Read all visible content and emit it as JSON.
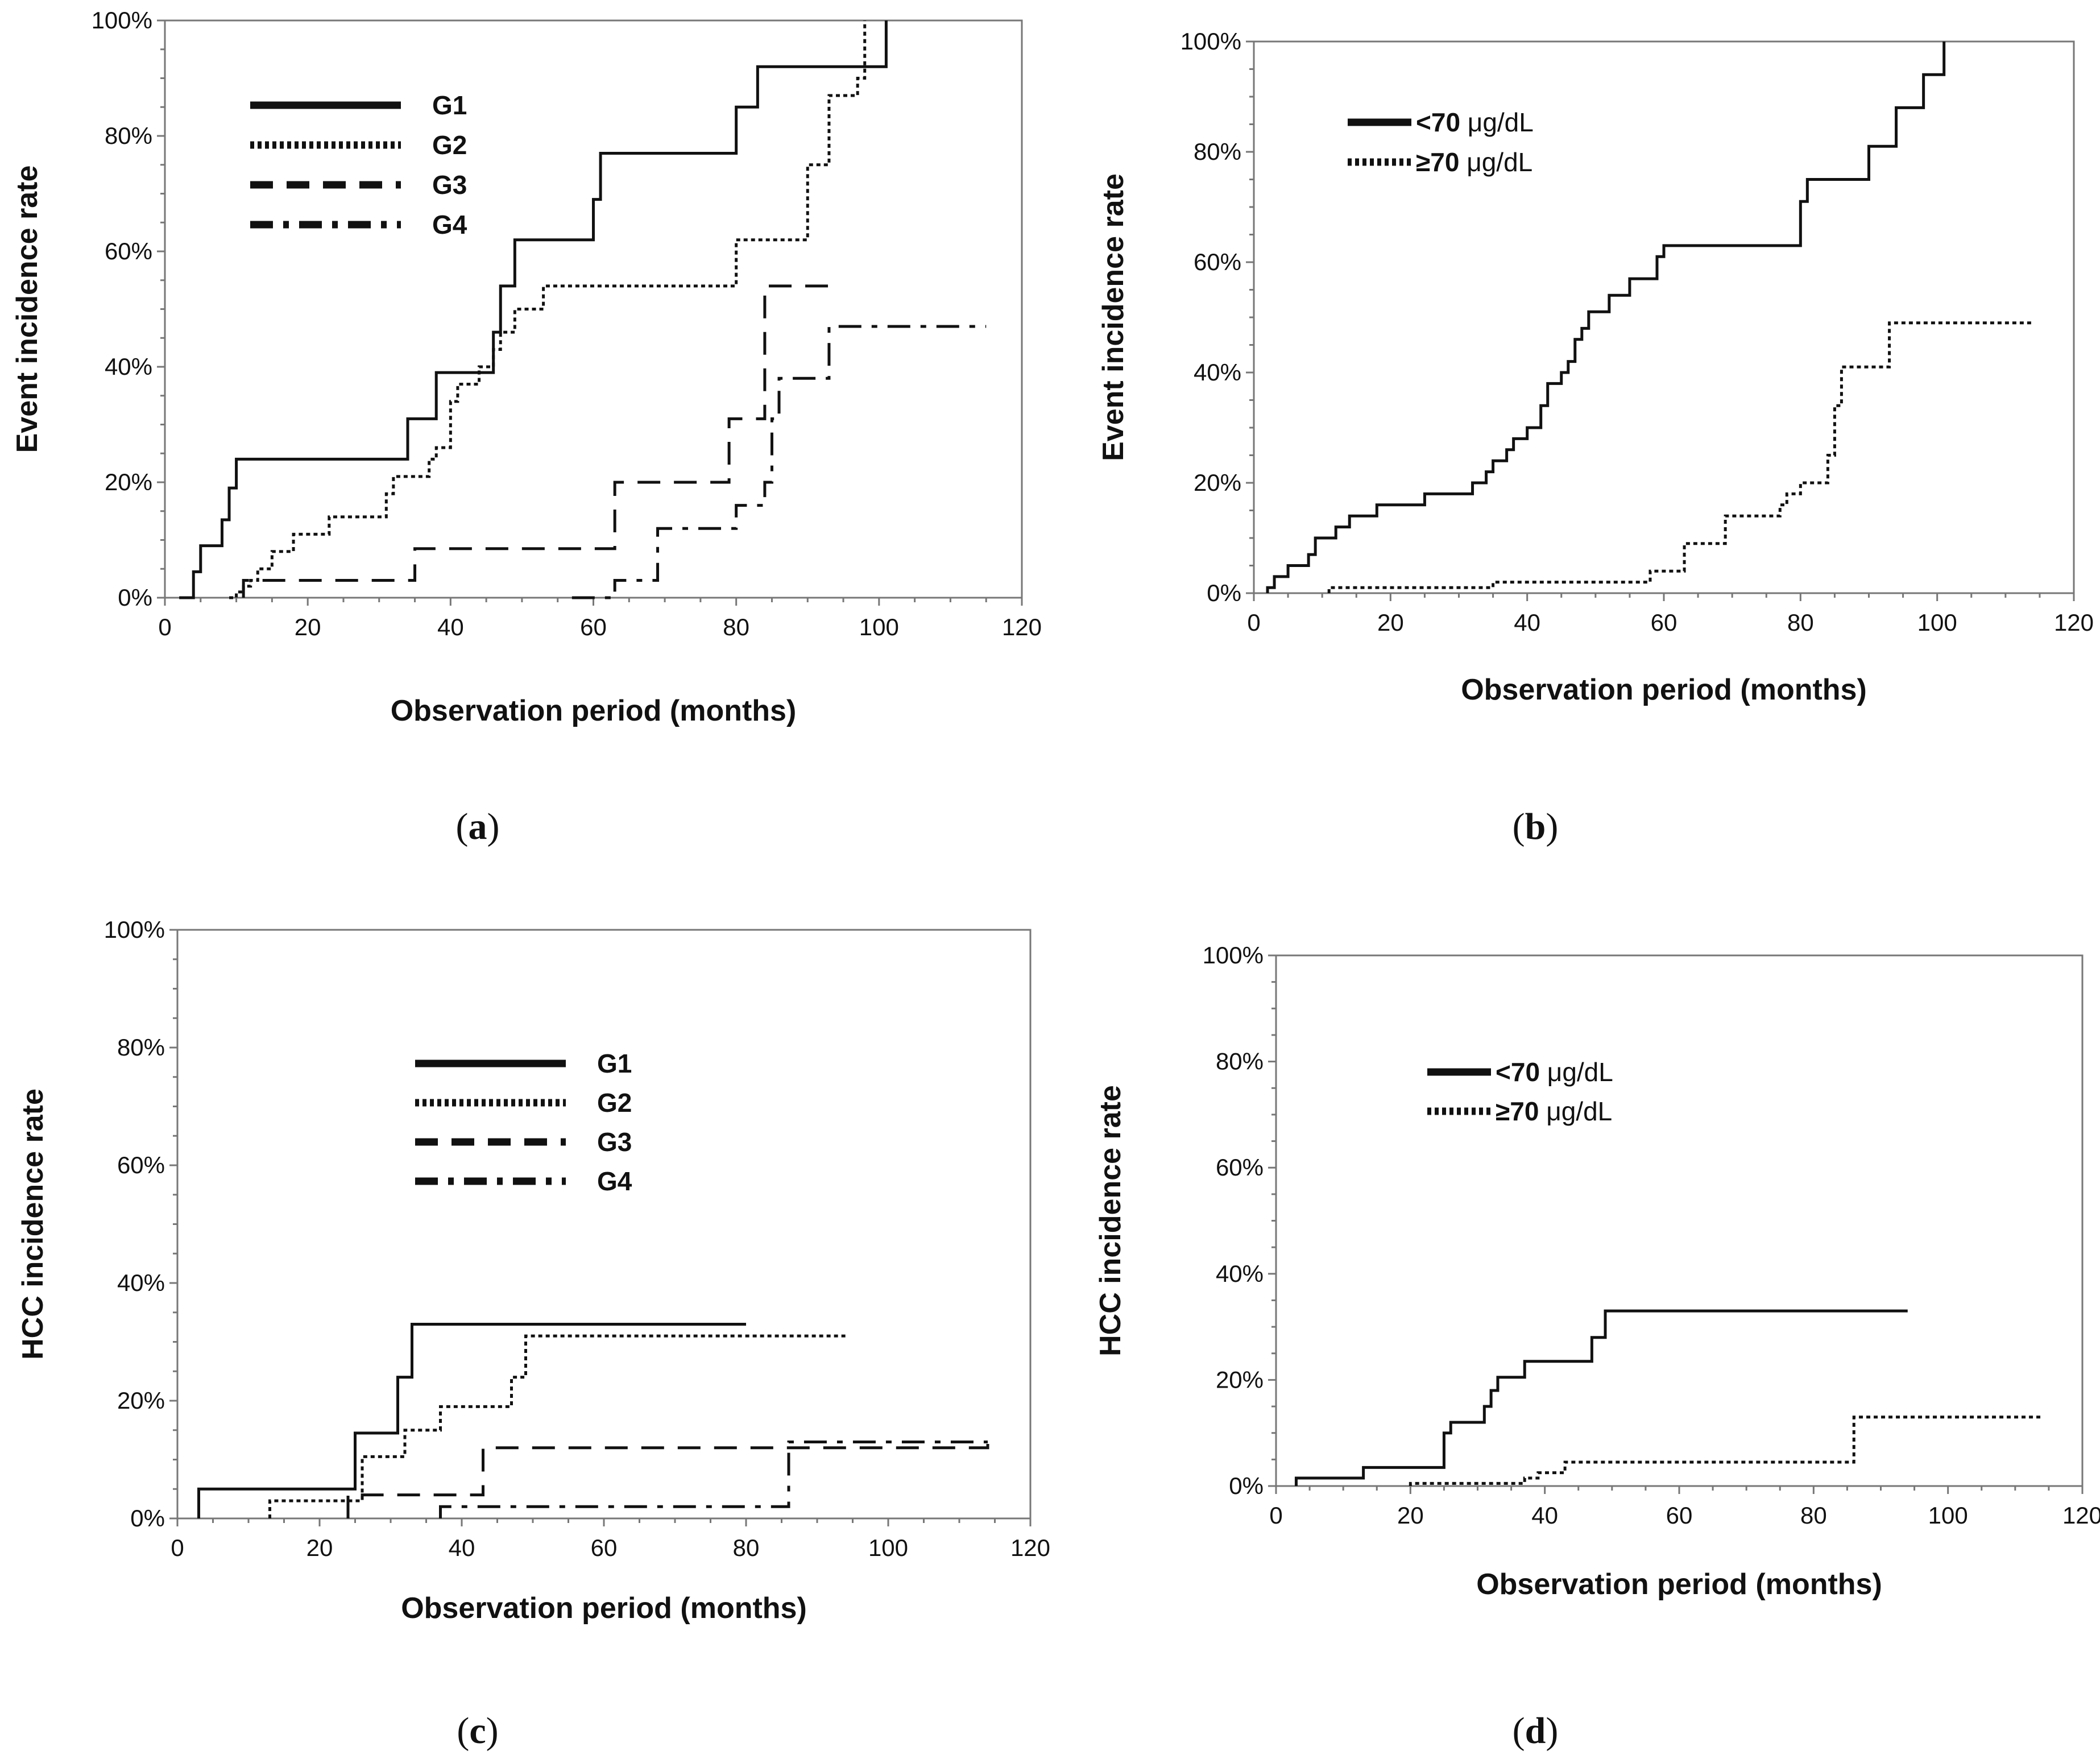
{
  "colors": {
    "line": "#111111",
    "axis": "#777777",
    "background": "#ffffff"
  },
  "chart_data": [
    {
      "panel": "a",
      "label": "(a)",
      "label_letter": "a",
      "type": "line",
      "step": true,
      "title": "",
      "xlabel": "Observation period (months)",
      "ylabel": "Event incidence rate",
      "xlim": [
        0,
        120
      ],
      "ylim": [
        0,
        100
      ],
      "xticks": [
        "0",
        "20",
        "40",
        "60",
        "80",
        "100",
        "120"
      ],
      "yticks": [
        "0%",
        "20%",
        "40%",
        "60%",
        "80%",
        "100%"
      ],
      "legend_position": "top-left",
      "series": [
        {
          "name": "G1",
          "style": "solid",
          "x": [
            2,
            4,
            5,
            8,
            9,
            10,
            34,
            38,
            46,
            47,
            48,
            49,
            60,
            61,
            80,
            83,
            100,
            101
          ],
          "y": [
            0,
            4.5,
            9,
            13.5,
            19,
            24,
            31,
            39,
            46,
            54,
            54,
            62,
            69,
            77,
            85,
            92,
            92,
            100
          ]
        },
        {
          "name": "G2",
          "style": "dotted",
          "x": [
            9,
            10,
            11,
            12,
            13,
            15,
            18,
            23,
            31,
            32,
            37,
            38,
            40,
            41,
            44,
            46,
            47,
            49,
            53,
            58,
            80,
            90,
            93,
            97,
            98
          ],
          "y": [
            0,
            1,
            2,
            3,
            5,
            8,
            11,
            14,
            18,
            21,
            24,
            26,
            34,
            37,
            40,
            43,
            46,
            50,
            54,
            54,
            62,
            75,
            87,
            90,
            100
          ]
        },
        {
          "name": "G3",
          "style": "dashed",
          "x": [
            11,
            35,
            63,
            79,
            84,
            94
          ],
          "y": [
            3,
            8.5,
            20,
            31,
            54,
            54
          ]
        },
        {
          "name": "G4",
          "style": "dash-dot",
          "x": [
            57,
            63,
            69,
            77,
            80,
            84,
            85,
            86,
            93,
            115
          ],
          "y": [
            0,
            3,
            12,
            12,
            16,
            20,
            31,
            38,
            47,
            47
          ]
        }
      ]
    },
    {
      "panel": "b",
      "label": "(b)",
      "label_letter": "b",
      "type": "line",
      "step": true,
      "title": "",
      "xlabel": "Observation period (months)",
      "ylabel": "Event incidence rate",
      "xlim": [
        0,
        120
      ],
      "ylim": [
        0,
        100
      ],
      "xticks": [
        "0",
        "20",
        "40",
        "60",
        "80",
        "100",
        "120"
      ],
      "yticks": [
        "0%",
        "20%",
        "40%",
        "60%",
        "80%",
        "100%"
      ],
      "legend_position": "top-left",
      "series": [
        {
          "name": "<70 μg/dL",
          "name_bold": "<70",
          "name_unit": " μg/dL",
          "style": "solid",
          "x": [
            2,
            3,
            5,
            8,
            9,
            12,
            14,
            18,
            25,
            32,
            34,
            35,
            37,
            38,
            40,
            42,
            43,
            45,
            46,
            47,
            48,
            49,
            52,
            55,
            59,
            60,
            80,
            81,
            84,
            90,
            94,
            98,
            101
          ],
          "y": [
            1,
            3,
            5,
            7,
            10,
            12,
            14,
            16,
            18,
            20,
            22,
            24,
            26,
            28,
            30,
            34,
            38,
            40,
            42,
            46,
            48,
            51,
            54,
            57,
            61,
            63,
            71,
            75,
            75,
            81,
            88,
            94,
            100
          ]
        },
        {
          "name": "≥70 μg/dL",
          "name_bold": "≥70",
          "name_unit": " μg/dL",
          "style": "dotted",
          "x": [
            11,
            35,
            58,
            63,
            69,
            77,
            78,
            80,
            84,
            85,
            86,
            93,
            114
          ],
          "y": [
            1,
            2,
            4,
            9,
            14,
            16,
            18,
            20,
            25,
            34,
            41,
            49,
            49
          ]
        }
      ]
    },
    {
      "panel": "c",
      "label": "(c)",
      "label_letter": "c",
      "type": "line",
      "step": true,
      "title": "",
      "xlabel": "Observation period (months)",
      "ylabel": "HCC incidence rate",
      "xlim": [
        0,
        120
      ],
      "ylim": [
        0,
        100
      ],
      "xticks": [
        "0",
        "20",
        "40",
        "60",
        "80",
        "100",
        "120"
      ],
      "yticks": [
        "0%",
        "20%",
        "40%",
        "60%",
        "80%",
        "100%"
      ],
      "legend_position": "upper-center",
      "series": [
        {
          "name": "G1",
          "style": "solid",
          "x": [
            3,
            25,
            31,
            33,
            80
          ],
          "y": [
            5,
            14.5,
            24,
            33,
            33
          ]
        },
        {
          "name": "G2",
          "style": "dotted",
          "x": [
            13,
            26,
            32,
            37,
            47,
            49,
            94
          ],
          "y": [
            3,
            10.5,
            15,
            19,
            24,
            31,
            31
          ]
        },
        {
          "name": "G3",
          "style": "dashed",
          "x": [
            24,
            43,
            86,
            114
          ],
          "y": [
            4,
            12,
            12,
            13
          ]
        },
        {
          "name": "G4",
          "style": "dash-dot",
          "x": [
            37,
            86,
            114
          ],
          "y": [
            2,
            13,
            13
          ]
        }
      ]
    },
    {
      "panel": "d",
      "label": "(d)",
      "label_letter": "d",
      "type": "line",
      "step": true,
      "title": "",
      "xlabel": "Observation period (months)",
      "ylabel": "HCC incidence rate",
      "xlim": [
        0,
        120
      ],
      "ylim": [
        0,
        100
      ],
      "xticks": [
        "0",
        "20",
        "40",
        "60",
        "80",
        "100",
        "120"
      ],
      "yticks": [
        "0%",
        "20%",
        "40%",
        "60%",
        "80%",
        "100%"
      ],
      "legend_position": "upper-center",
      "series": [
        {
          "name": "<70 μg/dL",
          "name_bold": "<70",
          "name_unit": " μg/dL",
          "style": "solid",
          "x": [
            3,
            13,
            25,
            26,
            29,
            31,
            32,
            33,
            35,
            37,
            47,
            49,
            94
          ],
          "y": [
            1.5,
            3.5,
            10,
            12,
            12,
            15,
            18,
            20.5,
            20.5,
            23.5,
            28,
            33,
            33
          ]
        },
        {
          "name": "≥70 μg/dL",
          "name_bold": "≥70",
          "name_unit": " μg/dL",
          "style": "dotted",
          "x": [
            20,
            37,
            39,
            43,
            86,
            114
          ],
          "y": [
            0.5,
            1.5,
            2.5,
            4.5,
            13,
            13
          ]
        }
      ]
    }
  ]
}
